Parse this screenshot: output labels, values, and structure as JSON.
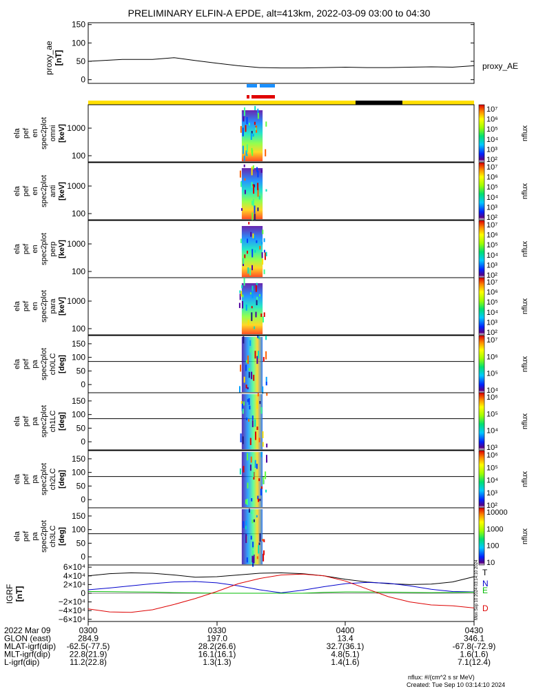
{
  "title": "PRELIMINARY ELFIN-A EPDE, alt=413km, 2022-03-09 03:00 to 04:30",
  "proxy_ae": {
    "ylabel": [
      "proxy_ae",
      "[nT]"
    ],
    "legend": "proxy_AE",
    "ticks": [
      "150",
      "100",
      "50",
      "0"
    ]
  },
  "spec_panels": [
    {
      "label": [
        "ela",
        "pef",
        "en",
        "spec2plot",
        "omni",
        "[keV]"
      ],
      "ticks": [
        "1000",
        "100"
      ]
    },
    {
      "label": [
        "ela",
        "pef",
        "en",
        "spec2plot",
        "anti",
        "[keV]"
      ],
      "ticks": [
        "1000",
        "100"
      ]
    },
    {
      "label": [
        "ela",
        "pef",
        "en",
        "spec2plot",
        "perp",
        "[keV]"
      ],
      "ticks": [
        "1000",
        "100"
      ]
    },
    {
      "label": [
        "ela",
        "pef",
        "en",
        "spec2plot",
        "para",
        "[keV]"
      ],
      "ticks": [
        "1000",
        "100"
      ]
    },
    {
      "label": [
        "ela",
        "pef",
        "pa",
        "spec2plot",
        "ch0LC",
        "[deg]"
      ],
      "ticks": [
        "150",
        "100",
        "50",
        "0"
      ]
    },
    {
      "label": [
        "ela",
        "pef",
        "pa",
        "spec2plot",
        "ch1LC",
        "[deg]"
      ],
      "ticks": [
        "150",
        "100",
        "50",
        "0"
      ]
    },
    {
      "label": [
        "ela",
        "pef",
        "pa",
        "spec2plot",
        "ch2LC",
        "[deg]"
      ],
      "ticks": [
        "150",
        "100",
        "50",
        "0"
      ]
    },
    {
      "label": [
        "ela",
        "pef",
        "pa",
        "spec2plot",
        "ch3LC",
        "[deg]"
      ],
      "ticks": [
        "150",
        "100",
        "50",
        "0"
      ]
    }
  ],
  "colorbars": {
    "unit": "nflux",
    "bar1_ticks": [
      "10⁷",
      "10⁶",
      "10⁵",
      "10⁴",
      "10³",
      "10²"
    ],
    "bar5_ticks": [
      "10⁷",
      "10⁶",
      "10⁵",
      "10⁴"
    ],
    "bar6_ticks": [
      "10⁶",
      "10⁵",
      "10⁴",
      "10³"
    ],
    "bar7_ticks": [
      "10⁶",
      "10⁵",
      "10⁴",
      "10³",
      "10²"
    ],
    "bar8_ticks": [
      "10000",
      "1000",
      "100",
      "10"
    ]
  },
  "igrf": {
    "ylabel": [
      "IGRF",
      "[nT]"
    ],
    "ticks": [
      "6×10⁴",
      "4×10⁴",
      "2×10⁴",
      "0",
      "−2×10⁴",
      "−4×10⁴",
      "−6×10⁴"
    ],
    "legend": [
      {
        "name": "T",
        "color": "#000000"
      },
      {
        "name": "N",
        "color": "#0000cc"
      },
      {
        "name": "E",
        "color": "#00bb00"
      },
      {
        "name": "D",
        "color": "#dd0000"
      }
    ],
    "side_text": "Mon Sep 10 2024 03:14:10 2024"
  },
  "time_axis": {
    "rows": [
      {
        "label": "2022 Mar 09",
        "values": [
          "0300",
          "0330",
          "0400",
          "0430"
        ]
      },
      {
        "label": "GLON (east)",
        "values": [
          "284.9",
          "197.0",
          "13.4",
          "346.1"
        ]
      },
      {
        "label": "MLAT-igrf(dip)",
        "values": [
          "-62.5(-77.5)",
          "28.2(26.6)",
          "32.7(36.1)",
          "-67.8(-72.9)"
        ]
      },
      {
        "label": "MLT-igrf(dip)",
        "values": [
          "22.8(21.9)",
          "16.1(16.1)",
          "4.8(5.1)",
          "1.6(1.6)"
        ]
      },
      {
        "label": "L-igrf(dip)",
        "values": [
          "11.2(22.8)",
          "1.3(1.3)",
          "1.4(1.6)",
          "7.1(12.4)"
        ]
      }
    ]
  },
  "footer": {
    "unit_note": "nflux: #/(cm^2 s sr MeV)",
    "created": "Created: Tue Sep 10 03:14:10 2024"
  },
  "colors": {
    "sunlight_bar": "#ffe000",
    "shadow_bar": "#000000",
    "sci_zone_blue": "#1a90ff",
    "sci_zone_red": "#e00000"
  },
  "chart_data": {
    "type": "line",
    "title": "PRELIMINARY ELFIN-A EPDE, alt=413km, 2022-03-09 03:00 to 04:30",
    "x_unit": "minutes after 03:00 UT",
    "xlim": [
      0,
      90
    ],
    "proxy_ae": {
      "ylim": [
        -10,
        155
      ],
      "x": [
        0,
        8,
        15,
        20,
        25,
        30,
        35,
        40,
        45,
        50,
        55,
        60,
        65,
        70,
        75,
        80,
        85,
        90
      ],
      "values": [
        50,
        55,
        55,
        60,
        52,
        45,
        38,
        33,
        32,
        32,
        33,
        34,
        33,
        33,
        34,
        35,
        34,
        38
      ],
      "series_name": "proxy_AE"
    },
    "igrf": {
      "ylim": [
        -65000,
        65000
      ],
      "x": [
        0,
        5,
        10,
        15,
        20,
        25,
        30,
        35,
        40,
        45,
        50,
        55,
        60,
        65,
        70,
        75,
        80,
        85,
        90
      ],
      "series": [
        {
          "name": "T",
          "values": [
            40000,
            45000,
            47000,
            46000,
            42000,
            37000,
            38000,
            42000,
            46000,
            47000,
            45000,
            40000,
            32000,
            26000,
            22000,
            20000,
            21000,
            26000,
            38000
          ]
        },
        {
          "name": "N",
          "values": [
            8000,
            12000,
            17000,
            22000,
            26000,
            27000,
            24000,
            17000,
            8000,
            1000,
            7000,
            15000,
            22000,
            25000,
            23000,
            17000,
            9000,
            4000,
            3000
          ]
        },
        {
          "name": "E",
          "values": [
            4000,
            3500,
            3000,
            2500,
            1500,
            800,
            0,
            0,
            0,
            0,
            0,
            2000,
            3000,
            2800,
            2300,
            1800,
            1500,
            1800,
            2500
          ]
        },
        {
          "name": "D",
          "values": [
            -36000,
            -43000,
            -44000,
            -38000,
            -26000,
            -12000,
            4000,
            22000,
            34000,
            42000,
            44000,
            40000,
            28000,
            10000,
            -8000,
            -20000,
            -27000,
            -29000,
            -34000
          ]
        }
      ]
    },
    "spectrogram_active_window_minutes": [
      35.5,
      41
    ]
  }
}
